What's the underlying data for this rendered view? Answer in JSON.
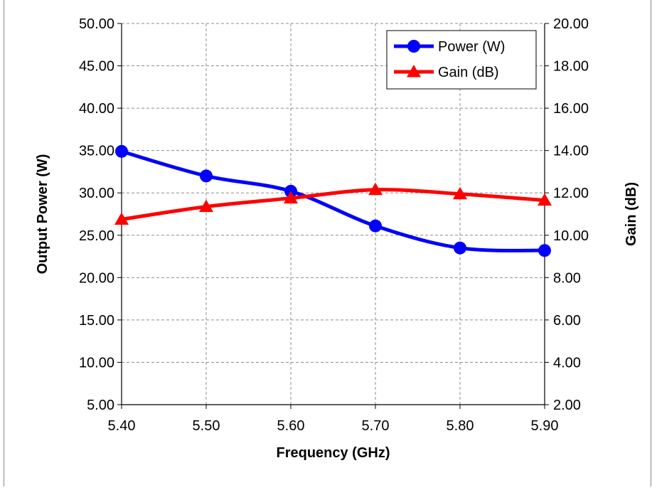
{
  "chart_data": {
    "type": "line",
    "title": "",
    "xlabel": "Frequency (GHz)",
    "ylabel": "Output Power (W)",
    "y2label": "Gain (dB)",
    "x": [
      5.4,
      5.5,
      5.6,
      5.7,
      5.8,
      5.9
    ],
    "x_tick_labels": [
      "5.40",
      "5.50",
      "5.60",
      "5.70",
      "5.80",
      "5.90"
    ],
    "xlim": [
      5.4,
      5.9
    ],
    "ylim": [
      5,
      50
    ],
    "y_tick_labels": [
      "5.00",
      "10.00",
      "15.00",
      "20.00",
      "25.00",
      "30.00",
      "35.00",
      "40.00",
      "45.00",
      "50.00"
    ],
    "y2lim": [
      2,
      20
    ],
    "y2_tick_labels": [
      "2.00",
      "4.00",
      "6.00",
      "8.00",
      "10.00",
      "12.00",
      "14.00",
      "16.00",
      "18.00",
      "20.00"
    ],
    "grid": true,
    "legend_position": "top-right",
    "series": [
      {
        "name": "Power (W)",
        "axis": "left",
        "marker": "circle",
        "color": "#0000ff",
        "values": [
          34.9,
          32.0,
          30.2,
          26.1,
          23.5,
          23.2
        ]
      },
      {
        "name": "Gain (dB)",
        "axis": "right",
        "marker": "triangle",
        "color": "#ff0000",
        "values": [
          10.75,
          11.35,
          11.75,
          12.15,
          11.95,
          11.65
        ]
      }
    ]
  }
}
